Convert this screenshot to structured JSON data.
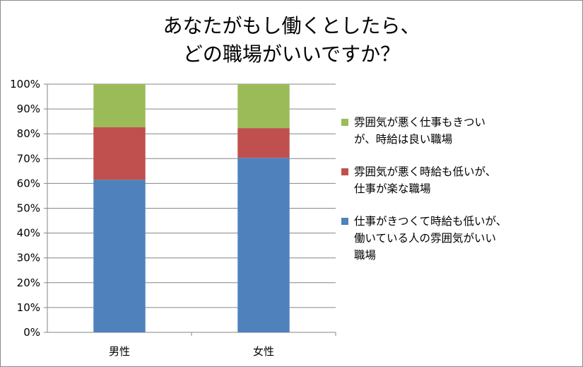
{
  "chart_data": {
    "type": "bar",
    "stacked": true,
    "title_lines": [
      "あなたがもし働くとしたら、",
      "どの職場がいいですか？"
    ],
    "categories": [
      "男性",
      "女性"
    ],
    "y_ticks": [
      "0%",
      "10%",
      "20%",
      "30%",
      "40%",
      "50%",
      "60%",
      "70%",
      "80%",
      "90%",
      "100%"
    ],
    "ylim": [
      0,
      100
    ],
    "grid": true,
    "legend_position": "right",
    "series": [
      {
        "name": "仕事がきつくて時給も低いが、働いている人の雰囲気がいい職場",
        "legend_lines": [
          "仕事がきつくて時給も低いが、",
          "働いている人の雰囲気がいい",
          "職場"
        ],
        "color": "#4f81bd",
        "values": [
          61.5,
          70.3
        ]
      },
      {
        "name": "雰囲気が悪く時給も低いが、仕事が楽な職場",
        "legend_lines": [
          "雰囲気が悪く時給も低いが、",
          "仕事が楽な職場"
        ],
        "color": "#c0504d",
        "values": [
          21.2,
          12.0
        ]
      },
      {
        "name": "雰囲気が悪く仕事もきついが、時給は良い職場",
        "legend_lines": [
          "雰囲気が悪く仕事もきつい",
          "が、時給は良い職場"
        ],
        "color": "#9bbb59",
        "values": [
          17.3,
          17.7
        ]
      }
    ]
  }
}
